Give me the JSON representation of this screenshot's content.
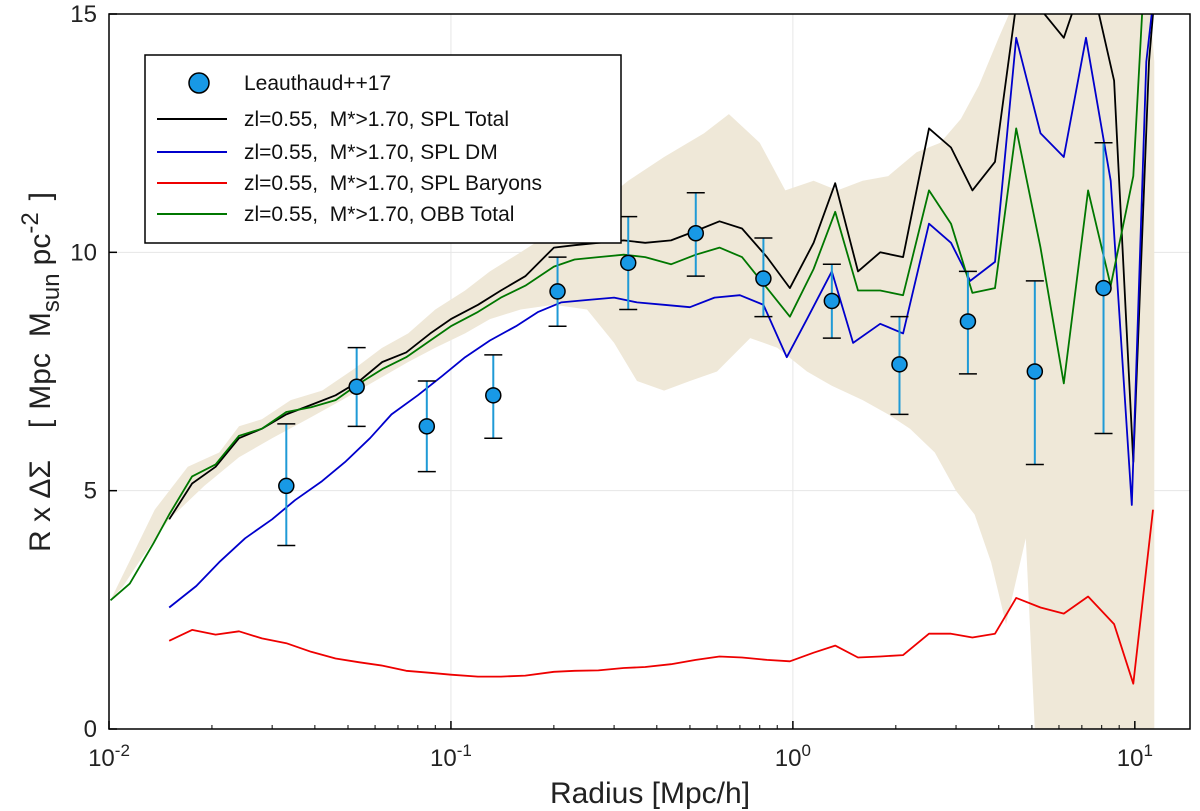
{
  "chart_data": {
    "type": "line",
    "xscale": "log",
    "xlim": [
      0.01,
      14.5
    ],
    "ylim": [
      0,
      15
    ],
    "grid": true,
    "legend_position": "top-left",
    "xlabel": "Radius [Mpc/h]",
    "ylabel_parts": {
      "main": "R x ΔΣ",
      "open_bracket": "[",
      "mpc": "Mpc",
      "m": "M",
      "sub": "sun",
      "pc": "pc",
      "sup": "-2",
      "close_bracket": "]"
    },
    "x_ticks": [
      {
        "value": 0.01,
        "base": "10",
        "exp": "-2"
      },
      {
        "value": 0.1,
        "base": "10",
        "exp": "-1"
      },
      {
        "value": 1,
        "base": "10",
        "exp": "0"
      },
      {
        "value": 10,
        "base": "10",
        "exp": "1"
      }
    ],
    "y_ticks": [
      {
        "value": 0,
        "label": "0"
      },
      {
        "value": 5,
        "label": "5"
      },
      {
        "value": 10,
        "label": "10"
      },
      {
        "value": 15,
        "label": "15"
      }
    ],
    "band": {
      "color": "#efe8d8",
      "upper": [
        [
          0.0136,
          4.6
        ],
        [
          0.017,
          5.5
        ],
        [
          0.021,
          5.8
        ],
        [
          0.024,
          6.35
        ],
        [
          0.028,
          6.5
        ],
        [
          0.034,
          6.9
        ],
        [
          0.042,
          7.1
        ],
        [
          0.052,
          7.55
        ],
        [
          0.063,
          8.0
        ],
        [
          0.075,
          8.3
        ],
        [
          0.09,
          8.8
        ],
        [
          0.11,
          9.2
        ],
        [
          0.13,
          9.6
        ],
        [
          0.16,
          10.0
        ],
        [
          0.2,
          10.45
        ],
        [
          0.26,
          10.9
        ],
        [
          0.33,
          11.5
        ],
        [
          0.42,
          12.0
        ],
        [
          0.55,
          12.5
        ],
        [
          0.65,
          12.9
        ],
        [
          0.8,
          12.3
        ],
        [
          0.95,
          11.3
        ],
        [
          1.15,
          11.5
        ],
        [
          1.35,
          11.3
        ],
        [
          1.6,
          11.5
        ],
        [
          1.9,
          11.6
        ],
        [
          2.3,
          12.1
        ],
        [
          2.7,
          12.3
        ],
        [
          3.1,
          12.8
        ],
        [
          3.5,
          13.5
        ],
        [
          4.0,
          14.5
        ],
        [
          4.6,
          15.5
        ],
        [
          5.5,
          17
        ],
        [
          7.5,
          17
        ],
        [
          9.0,
          17
        ],
        [
          10.5,
          17
        ],
        [
          11.0,
          15.5
        ],
        [
          11.4,
          14
        ]
      ],
      "lower": [
        [
          11.4,
          0
        ],
        [
          5.1,
          0
        ],
        [
          4.8,
          4.0
        ],
        [
          4.2,
          2.2
        ],
        [
          3.8,
          3.5
        ],
        [
          3.4,
          4.5
        ],
        [
          3.0,
          5.0
        ],
        [
          2.6,
          5.8
        ],
        [
          2.2,
          6.3
        ],
        [
          1.9,
          6.6
        ],
        [
          1.6,
          6.9
        ],
        [
          1.3,
          7.2
        ],
        [
          1.1,
          7.5
        ],
        [
          0.9,
          8.0
        ],
        [
          0.75,
          8.2
        ],
        [
          0.6,
          7.5
        ],
        [
          0.5,
          7.3
        ],
        [
          0.42,
          7.1
        ],
        [
          0.35,
          7.3
        ],
        [
          0.3,
          8.1
        ],
        [
          0.25,
          8.8
        ],
        [
          0.2,
          8.9
        ],
        [
          0.16,
          8.8
        ],
        [
          0.13,
          8.6
        ],
        [
          0.11,
          8.3
        ],
        [
          0.09,
          8.0
        ],
        [
          0.075,
          7.7
        ],
        [
          0.06,
          7.3
        ],
        [
          0.048,
          6.9
        ],
        [
          0.038,
          6.5
        ],
        [
          0.03,
          6.1
        ],
        [
          0.024,
          5.7
        ],
        [
          0.019,
          5.1
        ],
        [
          0.015,
          4.4
        ],
        [
          0.0125,
          3.6
        ],
        [
          0.011,
          3.0
        ],
        [
          0.0101,
          2.7
        ]
      ]
    },
    "series": [
      {
        "name": "zl=0.55,  M*>1.70, SPL Total",
        "color": "#000000",
        "points": [
          [
            0.015,
            4.4
          ],
          [
            0.0175,
            5.15
          ],
          [
            0.0205,
            5.5
          ],
          [
            0.024,
            6.1
          ],
          [
            0.028,
            6.3
          ],
          [
            0.033,
            6.6
          ],
          [
            0.039,
            6.8
          ],
          [
            0.046,
            7.0
          ],
          [
            0.054,
            7.3
          ],
          [
            0.063,
            7.7
          ],
          [
            0.074,
            7.9
          ],
          [
            0.087,
            8.3
          ],
          [
            0.1,
            8.6
          ],
          [
            0.12,
            8.9
          ],
          [
            0.14,
            9.2
          ],
          [
            0.165,
            9.5
          ],
          [
            0.2,
            10.1
          ],
          [
            0.23,
            10.15
          ],
          [
            0.27,
            10.2
          ],
          [
            0.32,
            10.25
          ],
          [
            0.37,
            10.2
          ],
          [
            0.44,
            10.25
          ],
          [
            0.52,
            10.45
          ],
          [
            0.61,
            10.65
          ],
          [
            0.71,
            10.5
          ],
          [
            0.84,
            9.9
          ],
          [
            0.98,
            9.25
          ],
          [
            1.15,
            10.2
          ],
          [
            1.33,
            11.45
          ],
          [
            1.55,
            9.6
          ],
          [
            1.8,
            10.0
          ],
          [
            2.1,
            9.9
          ],
          [
            2.5,
            12.6
          ],
          [
            2.9,
            12.2
          ],
          [
            3.35,
            11.3
          ],
          [
            3.9,
            11.9
          ],
          [
            4.5,
            15.2
          ],
          [
            5.3,
            15.1
          ],
          [
            6.2,
            14.5
          ],
          [
            7.3,
            16
          ],
          [
            8.7,
            13.6
          ],
          [
            9.9,
            5.6
          ],
          [
            11.0,
            14.0
          ],
          [
            11.3,
            15
          ]
        ]
      },
      {
        "name": "zl=0.55,  M*>1.70, SPL DM",
        "color": "#0000cc",
        "points": [
          [
            0.015,
            2.55
          ],
          [
            0.018,
            3.0
          ],
          [
            0.021,
            3.5
          ],
          [
            0.025,
            4.0
          ],
          [
            0.03,
            4.4
          ],
          [
            0.035,
            4.8
          ],
          [
            0.042,
            5.2
          ],
          [
            0.049,
            5.6
          ],
          [
            0.058,
            6.1
          ],
          [
            0.067,
            6.6
          ],
          [
            0.08,
            7.0
          ],
          [
            0.094,
            7.4
          ],
          [
            0.11,
            7.8
          ],
          [
            0.13,
            8.15
          ],
          [
            0.155,
            8.45
          ],
          [
            0.18,
            8.75
          ],
          [
            0.21,
            8.95
          ],
          [
            0.25,
            9.0
          ],
          [
            0.3,
            9.05
          ],
          [
            0.35,
            8.95
          ],
          [
            0.42,
            8.9
          ],
          [
            0.5,
            8.85
          ],
          [
            0.59,
            9.05
          ],
          [
            0.7,
            9.1
          ],
          [
            0.82,
            8.9
          ],
          [
            0.96,
            7.8
          ],
          [
            1.1,
            8.6
          ],
          [
            1.3,
            9.6
          ],
          [
            1.5,
            8.1
          ],
          [
            1.8,
            8.5
          ],
          [
            2.1,
            8.3
          ],
          [
            2.5,
            10.6
          ],
          [
            2.9,
            10.2
          ],
          [
            3.3,
            9.4
          ],
          [
            3.9,
            9.8
          ],
          [
            4.5,
            14.5
          ],
          [
            5.3,
            12.5
          ],
          [
            6.2,
            12.0
          ],
          [
            7.2,
            14.5
          ],
          [
            8.5,
            11.5
          ],
          [
            9.8,
            4.7
          ],
          [
            10.8,
            14.0
          ],
          [
            11.2,
            15
          ]
        ]
      },
      {
        "name": "zl=0.55,  M*>1.70, SPL Baryons",
        "color": "#ee0000",
        "points": [
          [
            0.015,
            1.85
          ],
          [
            0.0175,
            2.08
          ],
          [
            0.0205,
            1.98
          ],
          [
            0.024,
            2.05
          ],
          [
            0.028,
            1.9
          ],
          [
            0.033,
            1.8
          ],
          [
            0.039,
            1.62
          ],
          [
            0.046,
            1.48
          ],
          [
            0.054,
            1.4
          ],
          [
            0.063,
            1.33
          ],
          [
            0.074,
            1.22
          ],
          [
            0.087,
            1.18
          ],
          [
            0.1,
            1.14
          ],
          [
            0.12,
            1.1
          ],
          [
            0.14,
            1.1
          ],
          [
            0.165,
            1.12
          ],
          [
            0.2,
            1.2
          ],
          [
            0.23,
            1.22
          ],
          [
            0.27,
            1.23
          ],
          [
            0.32,
            1.28
          ],
          [
            0.37,
            1.3
          ],
          [
            0.44,
            1.36
          ],
          [
            0.52,
            1.45
          ],
          [
            0.61,
            1.52
          ],
          [
            0.71,
            1.5
          ],
          [
            0.84,
            1.45
          ],
          [
            0.98,
            1.42
          ],
          [
            1.15,
            1.6
          ],
          [
            1.33,
            1.75
          ],
          [
            1.55,
            1.5
          ],
          [
            1.8,
            1.52
          ],
          [
            2.1,
            1.55
          ],
          [
            2.5,
            2.0
          ],
          [
            2.9,
            2.0
          ],
          [
            3.35,
            1.92
          ],
          [
            3.9,
            2.0
          ],
          [
            4.5,
            2.75
          ],
          [
            5.3,
            2.55
          ],
          [
            6.2,
            2.42
          ],
          [
            7.3,
            2.78
          ],
          [
            8.7,
            2.2
          ],
          [
            9.9,
            0.95
          ],
          [
            11.3,
            4.6
          ]
        ]
      },
      {
        "name": "zl=0.55,  M*>1.70, OBB Total",
        "color": "#007700",
        "points": [
          [
            0.0101,
            2.7
          ],
          [
            0.0115,
            3.05
          ],
          [
            0.0135,
            3.9
          ],
          [
            0.015,
            4.5
          ],
          [
            0.0175,
            5.3
          ],
          [
            0.0205,
            5.55
          ],
          [
            0.024,
            6.15
          ],
          [
            0.028,
            6.3
          ],
          [
            0.033,
            6.65
          ],
          [
            0.039,
            6.75
          ],
          [
            0.046,
            6.9
          ],
          [
            0.054,
            7.25
          ],
          [
            0.063,
            7.55
          ],
          [
            0.074,
            7.8
          ],
          [
            0.087,
            8.15
          ],
          [
            0.1,
            8.45
          ],
          [
            0.12,
            8.75
          ],
          [
            0.14,
            9.05
          ],
          [
            0.165,
            9.3
          ],
          [
            0.2,
            9.7
          ],
          [
            0.23,
            9.85
          ],
          [
            0.27,
            9.9
          ],
          [
            0.32,
            9.95
          ],
          [
            0.37,
            9.9
          ],
          [
            0.44,
            9.75
          ],
          [
            0.52,
            9.95
          ],
          [
            0.61,
            10.1
          ],
          [
            0.71,
            9.9
          ],
          [
            0.84,
            9.25
          ],
          [
            0.98,
            8.65
          ],
          [
            1.15,
            9.65
          ],
          [
            1.33,
            10.85
          ],
          [
            1.55,
            9.2
          ],
          [
            1.8,
            9.2
          ],
          [
            2.1,
            9.1
          ],
          [
            2.5,
            11.3
          ],
          [
            2.9,
            10.6
          ],
          [
            3.35,
            9.15
          ],
          [
            3.9,
            9.25
          ],
          [
            4.5,
            12.6
          ],
          [
            5.3,
            10.1
          ],
          [
            6.2,
            7.25
          ],
          [
            7.3,
            11.3
          ],
          [
            8.5,
            9.3
          ],
          [
            9.9,
            11.6
          ],
          [
            10.5,
            15
          ]
        ]
      }
    ],
    "observations": {
      "name": "Leauthaud++17",
      "color": "#1899e6",
      "errorbar_color": "#1f9ad6",
      "points": [
        {
          "x": 0.033,
          "y": 5.1,
          "lo": 3.85,
          "hi": 6.4
        },
        {
          "x": 0.053,
          "y": 7.18,
          "lo": 6.35,
          "hi": 8.0
        },
        {
          "x": 0.085,
          "y": 6.35,
          "lo": 5.4,
          "hi": 7.3
        },
        {
          "x": 0.133,
          "y": 7.0,
          "lo": 6.1,
          "hi": 7.85
        },
        {
          "x": 0.205,
          "y": 9.18,
          "lo": 8.45,
          "hi": 9.9
        },
        {
          "x": 0.33,
          "y": 9.78,
          "lo": 8.8,
          "hi": 10.75
        },
        {
          "x": 0.52,
          "y": 10.4,
          "lo": 9.5,
          "hi": 11.25
        },
        {
          "x": 0.82,
          "y": 9.45,
          "lo": 8.65,
          "hi": 10.3
        },
        {
          "x": 1.3,
          "y": 8.98,
          "lo": 8.2,
          "hi": 9.75
        },
        {
          "x": 2.05,
          "y": 7.65,
          "lo": 6.6,
          "hi": 8.65
        },
        {
          "x": 3.25,
          "y": 8.55,
          "lo": 7.45,
          "hi": 9.6
        },
        {
          "x": 5.1,
          "y": 7.5,
          "lo": 5.55,
          "hi": 9.4
        },
        {
          "x": 8.1,
          "y": 9.25,
          "lo": 6.2,
          "hi": 12.3
        }
      ]
    }
  }
}
